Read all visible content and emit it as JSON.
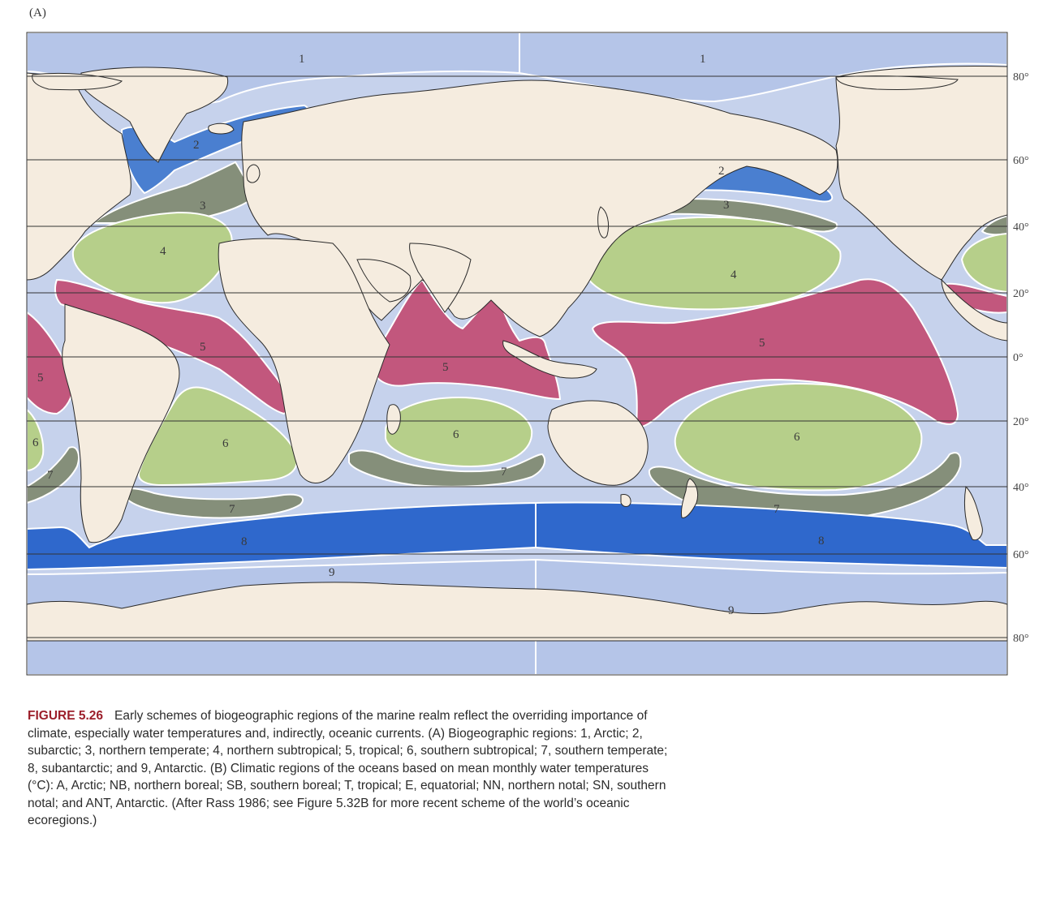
{
  "panel_label": "(A)",
  "colors": {
    "ocean": "#c6d2ec",
    "land": "#f5ecdf",
    "coast": "#2a2a2a",
    "arctic": "#b5c5e8",
    "subarctic": "#4a7fd0",
    "northern_temperate": "#858f7a",
    "subtropical": "#b6cf8a",
    "tropical": "#c2577d",
    "southern_temperate": "#858f7a",
    "subantarctic": "#2f68cc",
    "antarctic": "#b5c5e8",
    "caption_accent": "#9c1f2b"
  },
  "latitude_labels": [
    "80°",
    "60°",
    "40°",
    "20°",
    "0°",
    "20°",
    "40°",
    "60°",
    "80°"
  ],
  "regions": [
    {
      "id": "arctic-west",
      "number": "1",
      "name": "Arctic"
    },
    {
      "id": "arctic-east",
      "number": "1",
      "name": "Arctic"
    },
    {
      "id": "subarctic-atlantic",
      "number": "2",
      "name": "subarctic"
    },
    {
      "id": "subarctic-pacific",
      "number": "2",
      "name": "subarctic"
    },
    {
      "id": "n-temperate-atlantic",
      "number": "3",
      "name": "northern temperate"
    },
    {
      "id": "n-temperate-pacific",
      "number": "3",
      "name": "northern temperate"
    },
    {
      "id": "n-subtropical-atlantic",
      "number": "4",
      "name": "northern subtropical"
    },
    {
      "id": "n-subtropical-pacific",
      "number": "4",
      "name": "northern subtropical"
    },
    {
      "id": "tropical-atlantic",
      "number": "5",
      "name": "tropical"
    },
    {
      "id": "tropical-pacific-west",
      "number": "5",
      "name": "tropical"
    },
    {
      "id": "tropical-indian",
      "number": "5",
      "name": "tropical"
    },
    {
      "id": "tropical-pacific",
      "number": "5",
      "name": "tropical"
    },
    {
      "id": "s-subtropical-pacific-west",
      "number": "6",
      "name": "southern subtropical"
    },
    {
      "id": "s-subtropical-atlantic",
      "number": "6",
      "name": "southern subtropical"
    },
    {
      "id": "s-subtropical-indian",
      "number": "6",
      "name": "southern subtropical"
    },
    {
      "id": "s-subtropical-pacific",
      "number": "6",
      "name": "southern subtropical"
    },
    {
      "id": "s-temperate-pacific-west",
      "number": "7",
      "name": "southern temperate"
    },
    {
      "id": "s-temperate-atlantic",
      "number": "7",
      "name": "southern temperate"
    },
    {
      "id": "s-temperate-indian",
      "number": "7",
      "name": "southern temperate"
    },
    {
      "id": "s-temperate-pacific",
      "number": "7",
      "name": "southern temperate"
    },
    {
      "id": "subantarctic-west",
      "number": "8",
      "name": "subantarctic"
    },
    {
      "id": "subantarctic-east",
      "number": "8",
      "name": "subantarctic"
    },
    {
      "id": "antarctic-west",
      "number": "9",
      "name": "Antarctic"
    },
    {
      "id": "antarctic-east",
      "number": "9",
      "name": "Antarctic"
    }
  ],
  "caption": {
    "figure_number": "FIGURE 5.26",
    "text": "Early schemes of biogeographic regions of the marine realm reflect the overriding importance of climate, especially water temperatures and, indirectly, oceanic currents. (A) Biogeographic regions: 1, Arctic; 2, subarctic; 3, northern temperate; 4, northern subtropical; 5, tropical; 6, southern subtropical; 7, southern temperate; 8, subantarctic; and 9, Antarctic. (B) Climatic regions of the oceans based on mean monthly water temperatures (°C): A, Arctic; NB, northern boreal; SB, southern boreal; T, tropical; E, equatorial; NN, northern notal; SN, southern notal; and ANT, Antarctic. (After Rass 1986; see Figure 5.32B for more recent scheme of the world’s oceanic ecoregions.)"
  }
}
